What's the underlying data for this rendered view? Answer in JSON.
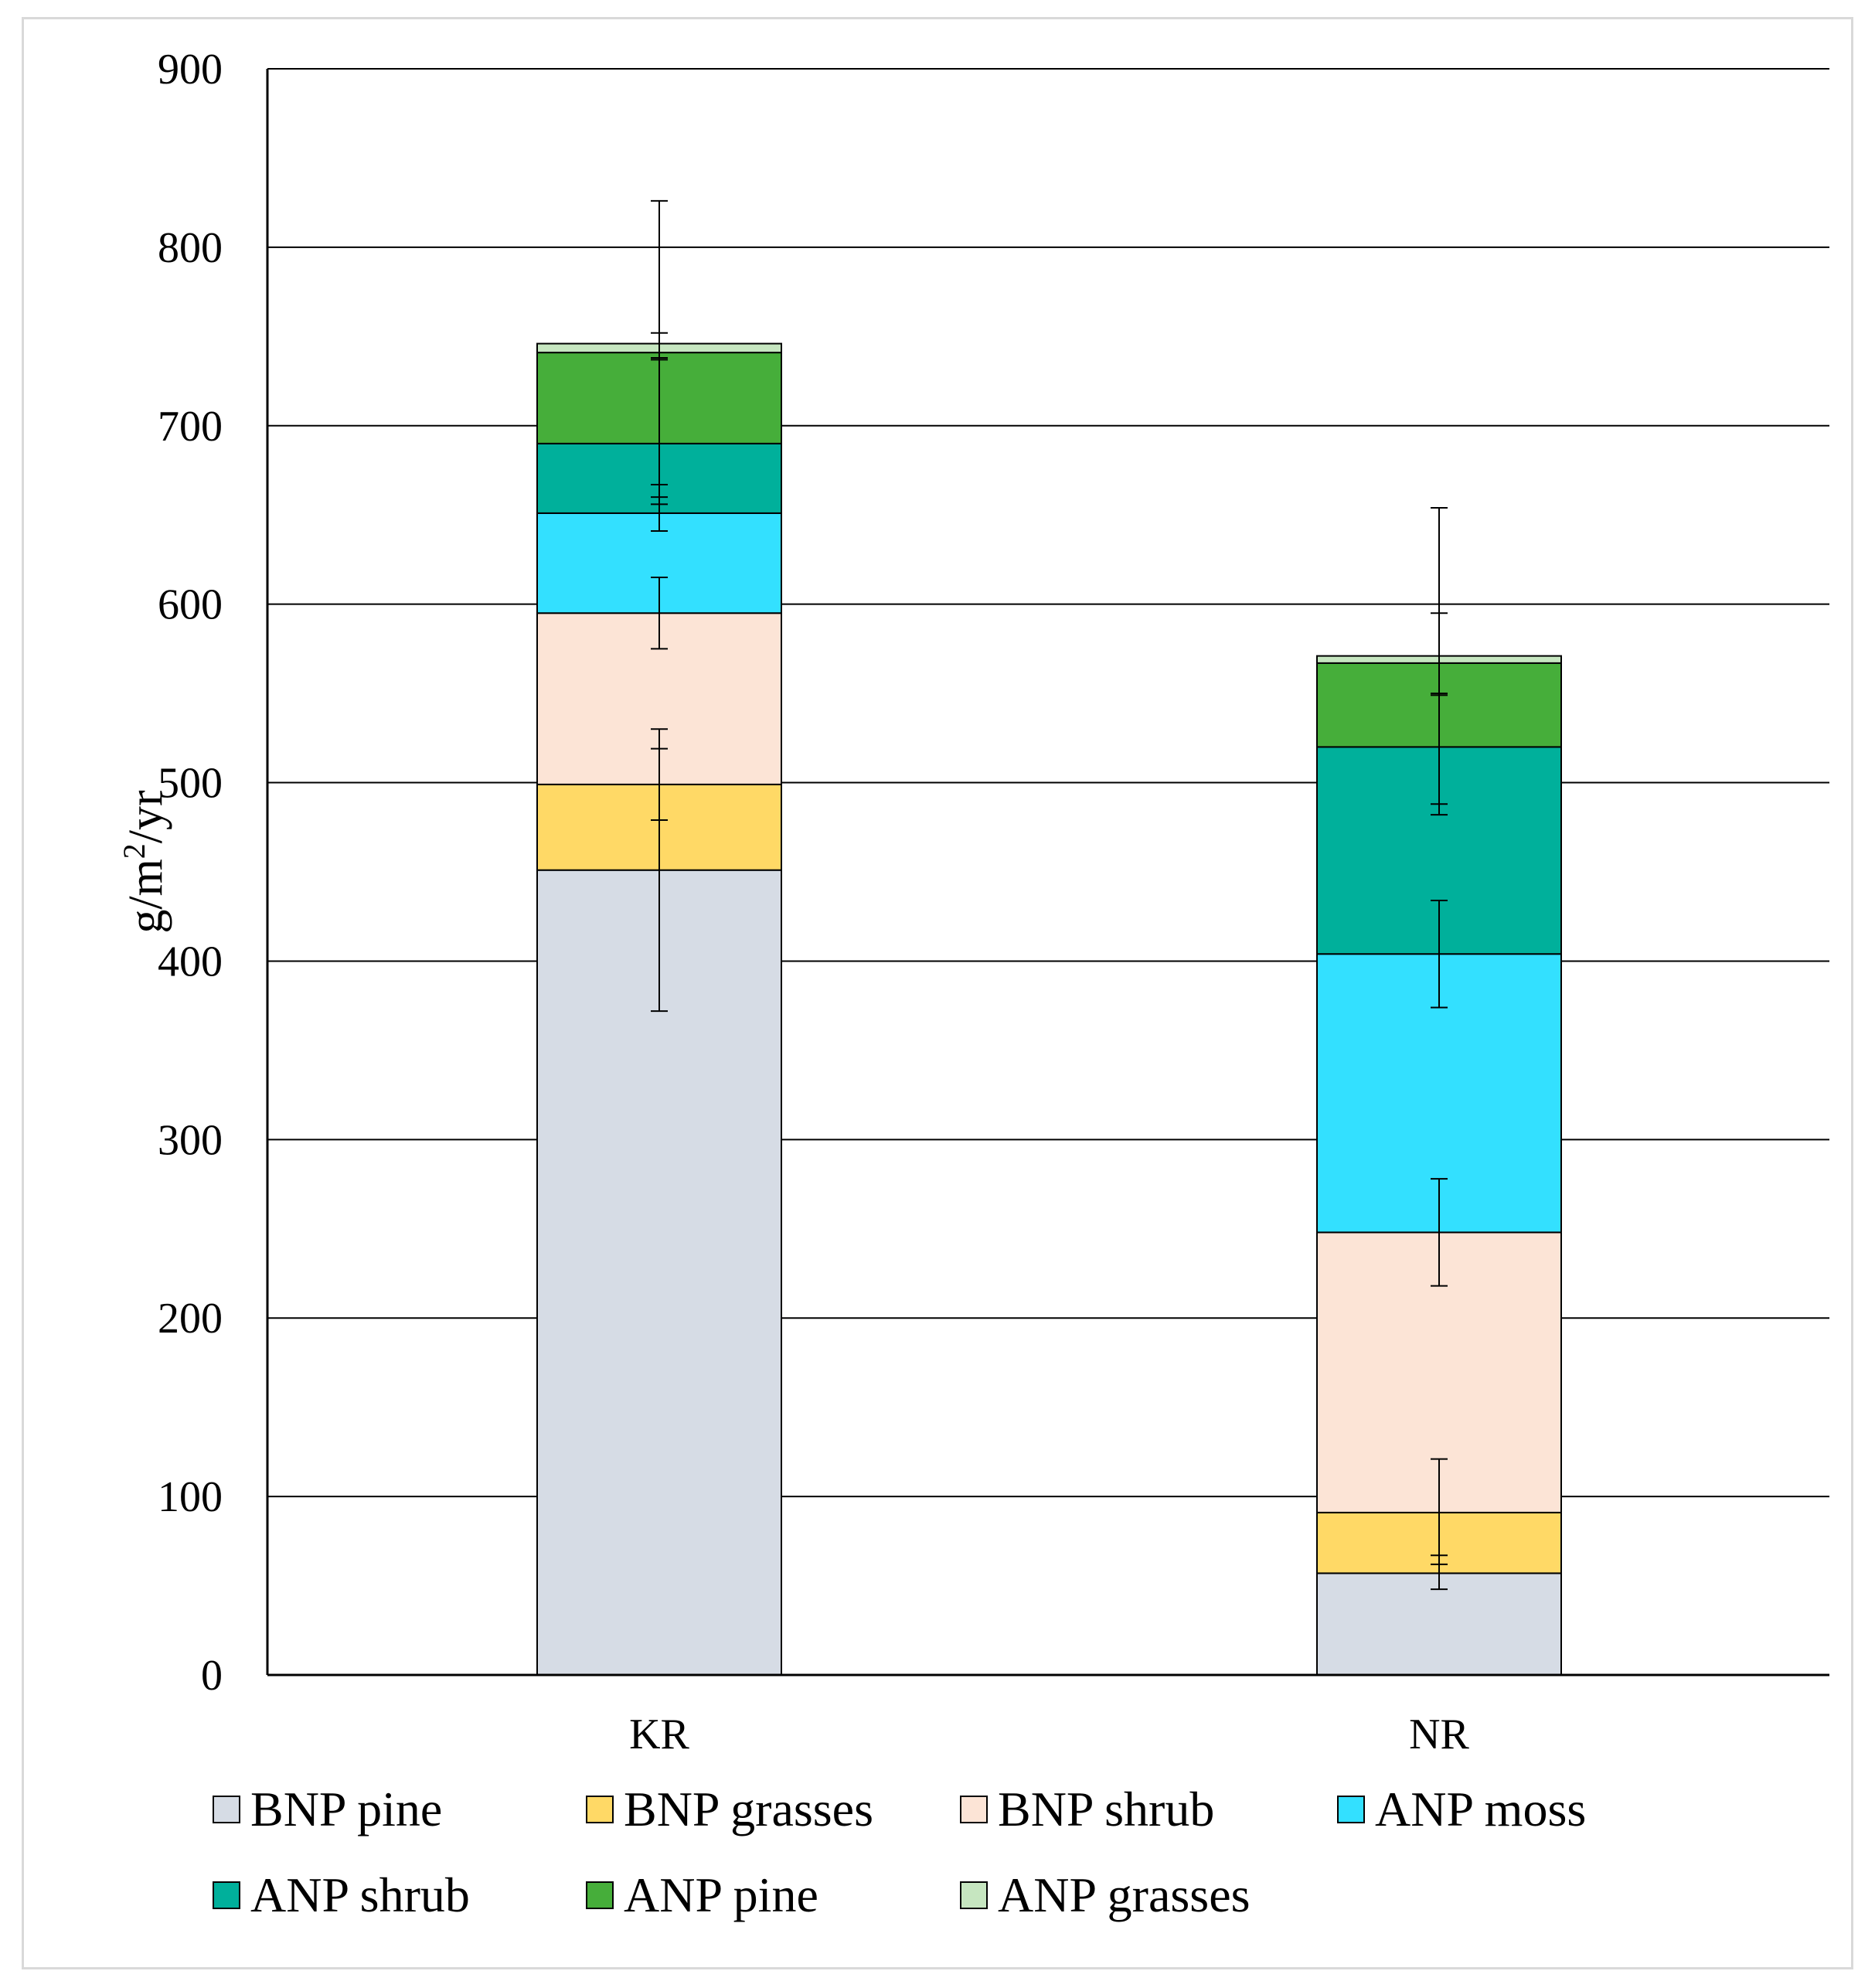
{
  "chart_data": {
    "type": "bar",
    "stacked": true,
    "title": "",
    "xlabel": "",
    "ylabel": "g/m²/yr",
    "ylabel_parts": {
      "before": "g/m",
      "sup": "2",
      "after": "/yr"
    },
    "ylim": [
      0,
      900
    ],
    "yticks": [
      0,
      100,
      200,
      300,
      400,
      500,
      600,
      700,
      800,
      900
    ],
    "grid": true,
    "legend_position": "bottom",
    "categories": [
      "KR",
      "NR"
    ],
    "series": [
      {
        "name": "BNP pine",
        "color": "#D6DCE5",
        "values": [
          451,
          57
        ],
        "error_low": [
          372,
          48
        ],
        "error_high": [
          530,
          67
        ]
      },
      {
        "name": "BNP grasses",
        "color": "#FFD966",
        "values": [
          48,
          34
        ],
        "error_low": [
          479,
          62
        ],
        "error_high": [
          519,
          121
        ]
      },
      {
        "name": "BNP shrub",
        "color": "#FCE4D6",
        "values": [
          96,
          157
        ],
        "error_low": [
          575,
          218
        ],
        "error_high": [
          615,
          278
        ]
      },
      {
        "name": "ANP moss",
        "color": "#33E0FF",
        "values": [
          56,
          156
        ],
        "error_low": [
          641,
          374
        ],
        "error_high": [
          667,
          434
        ]
      },
      {
        "name": "ANP shrub",
        "color": "#00B09B",
        "values": [
          39,
          116
        ],
        "error_low": [
          660,
          482
        ],
        "error_high": [
          737,
          549
        ]
      },
      {
        "name": "ANP pine",
        "color": "#46AE3A",
        "values": [
          51,
          47
        ],
        "error_low": [
          656,
          488
        ],
        "error_high": [
          826,
          654
        ]
      },
      {
        "name": "ANP grasses",
        "color": "#C6E6C0",
        "values": [
          5,
          4
        ],
        "error_low": [
          738,
          550
        ],
        "error_high": [
          752,
          595
        ]
      }
    ]
  }
}
